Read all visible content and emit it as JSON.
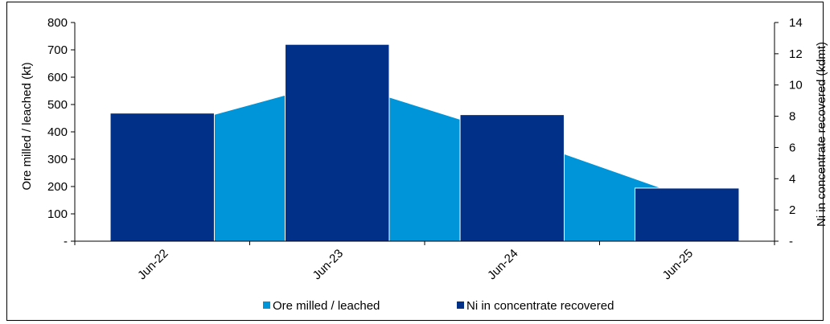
{
  "chart_data": {
    "type": "bar",
    "categories": [
      "Jun-22",
      "Jun-23",
      "Jun-24",
      "Jun-25"
    ],
    "series": [
      {
        "name": "Ore milled / leached",
        "type": "area",
        "axis": "left",
        "color": "#0095D9",
        "values": [
          410,
          585,
          385,
          160
        ]
      },
      {
        "name": "Ni in concentrate recovered",
        "type": "bar",
        "axis": "right",
        "color": "#003087",
        "values": [
          8.2,
          12.6,
          8.1,
          3.4
        ]
      }
    ],
    "y_left": {
      "label": "Ore milled / leached (kt)",
      "range": [
        0,
        800
      ],
      "ticks": [
        "-",
        "100",
        "200",
        "300",
        "400",
        "500",
        "600",
        "700",
        "800"
      ]
    },
    "y_right": {
      "label": "Ni in concentrate recovered (kdmt)",
      "range": [
        0,
        14
      ],
      "ticks": [
        "-",
        "2",
        "4",
        "6",
        "8",
        "10",
        "12",
        "14"
      ]
    },
    "grid": false,
    "legend_position": "bottom"
  }
}
